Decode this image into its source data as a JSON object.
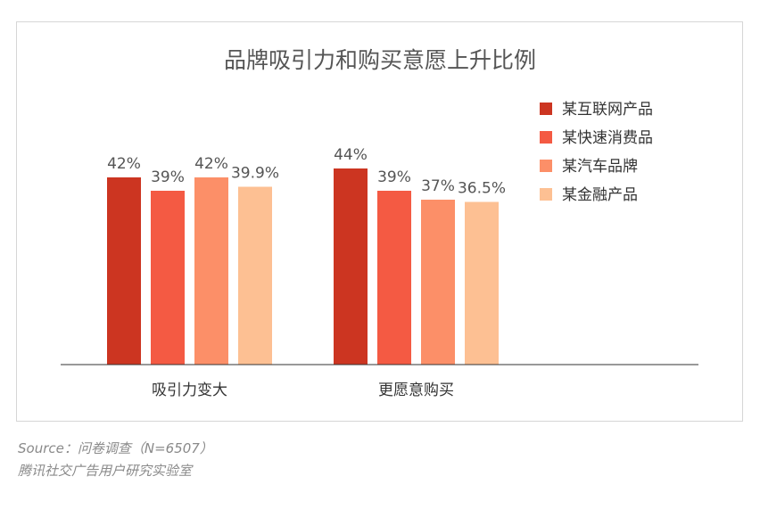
{
  "chart_data": {
    "type": "bar",
    "title": "品牌吸引力和购买意愿上升比例",
    "categories": [
      "吸引力变大",
      "更愿意购买"
    ],
    "series": [
      {
        "name": "某互联网产品",
        "values": [
          42,
          44
        ],
        "labels": [
          "42%",
          "44%"
        ],
        "color": "#cc3521"
      },
      {
        "name": "某快速消费品",
        "values": [
          39,
          39
        ],
        "labels": [
          "39%",
          "39%"
        ],
        "color": "#f45a43"
      },
      {
        "name": "某汽车品牌",
        "values": [
          42,
          37
        ],
        "labels": [
          "42%",
          "37%"
        ],
        "color": "#fc8f68"
      },
      {
        "name": "某金融产品",
        "values": [
          39.9,
          36.5
        ],
        "labels": [
          "39.9%",
          "36.5%"
        ],
        "color": "#fdc093"
      }
    ],
    "ylim": [
      0,
      100
    ],
    "grid": false,
    "legend": "top-right"
  },
  "footer": {
    "source": "Source：问卷调查（N=6507）",
    "org": "腾讯社交广告用户研究实验室"
  }
}
